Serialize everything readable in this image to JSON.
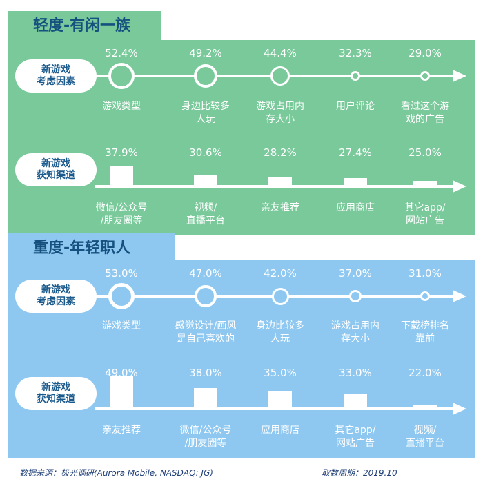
{
  "colors": {
    "green_panel": "#79c99a",
    "blue_panel": "#8ec8f1",
    "header_text": "#15507e",
    "label_text": "#1b5a8c"
  },
  "footer": {
    "source": "数据来源：极光调研(Aurora Mobile, NASDAQ: JG)",
    "period": "取数周期：2019.10"
  },
  "chart_data": [
    {
      "type": "scatter",
      "section": "轻度-有闲一族",
      "row_label": "新游戏\n考虑因素",
      "categories": [
        "游戏类型",
        "身边比较多\n人玩",
        "游戏占用内\n存大小",
        "用户评论",
        "看过这个游\n戏的广告"
      ],
      "values": [
        52.4,
        49.2,
        44.4,
        32.3,
        29.0
      ],
      "value_labels": [
        "52.4%",
        "49.2%",
        "44.4%",
        "32.3%",
        "29.0%"
      ]
    },
    {
      "type": "bar",
      "section": "轻度-有闲一族",
      "row_label": "新游戏\n获知渠道",
      "categories": [
        "微信/公众号\n/朋友圈等",
        "视频/\n直播平台",
        "亲友推荐",
        "应用商店",
        "其它app/\n网站广告"
      ],
      "values": [
        37.9,
        30.6,
        28.2,
        27.4,
        25.0
      ],
      "value_labels": [
        "37.9%",
        "30.6%",
        "28.2%",
        "27.4%",
        "25.0%"
      ]
    },
    {
      "type": "scatter",
      "section": "重度-年轻职人",
      "row_label": "新游戏\n考虑因素",
      "categories": [
        "游戏类型",
        "感觉设计/画风\n是自己喜欢的",
        "身边比较多\n人玩",
        "游戏占用内\n存大小",
        "下载榜排名\n靠前"
      ],
      "values": [
        53.0,
        47.0,
        42.0,
        37.0,
        31.0
      ],
      "value_labels": [
        "53.0%",
        "47.0%",
        "42.0%",
        "37.0%",
        "31.0%"
      ]
    },
    {
      "type": "bar",
      "section": "重度-年轻职人",
      "row_label": "新游戏\n获知渠道",
      "categories": [
        "亲友推荐",
        "微信/公众号\n/朋友圈等",
        "应用商店",
        "其它app/\n网站广告",
        "视频/\n直播平台"
      ],
      "values": [
        49.0,
        38.0,
        35.0,
        33.0,
        22.0
      ],
      "value_labels": [
        "49.0%",
        "38.0%",
        "35.0%",
        "33.0%",
        "22.0%"
      ]
    }
  ]
}
